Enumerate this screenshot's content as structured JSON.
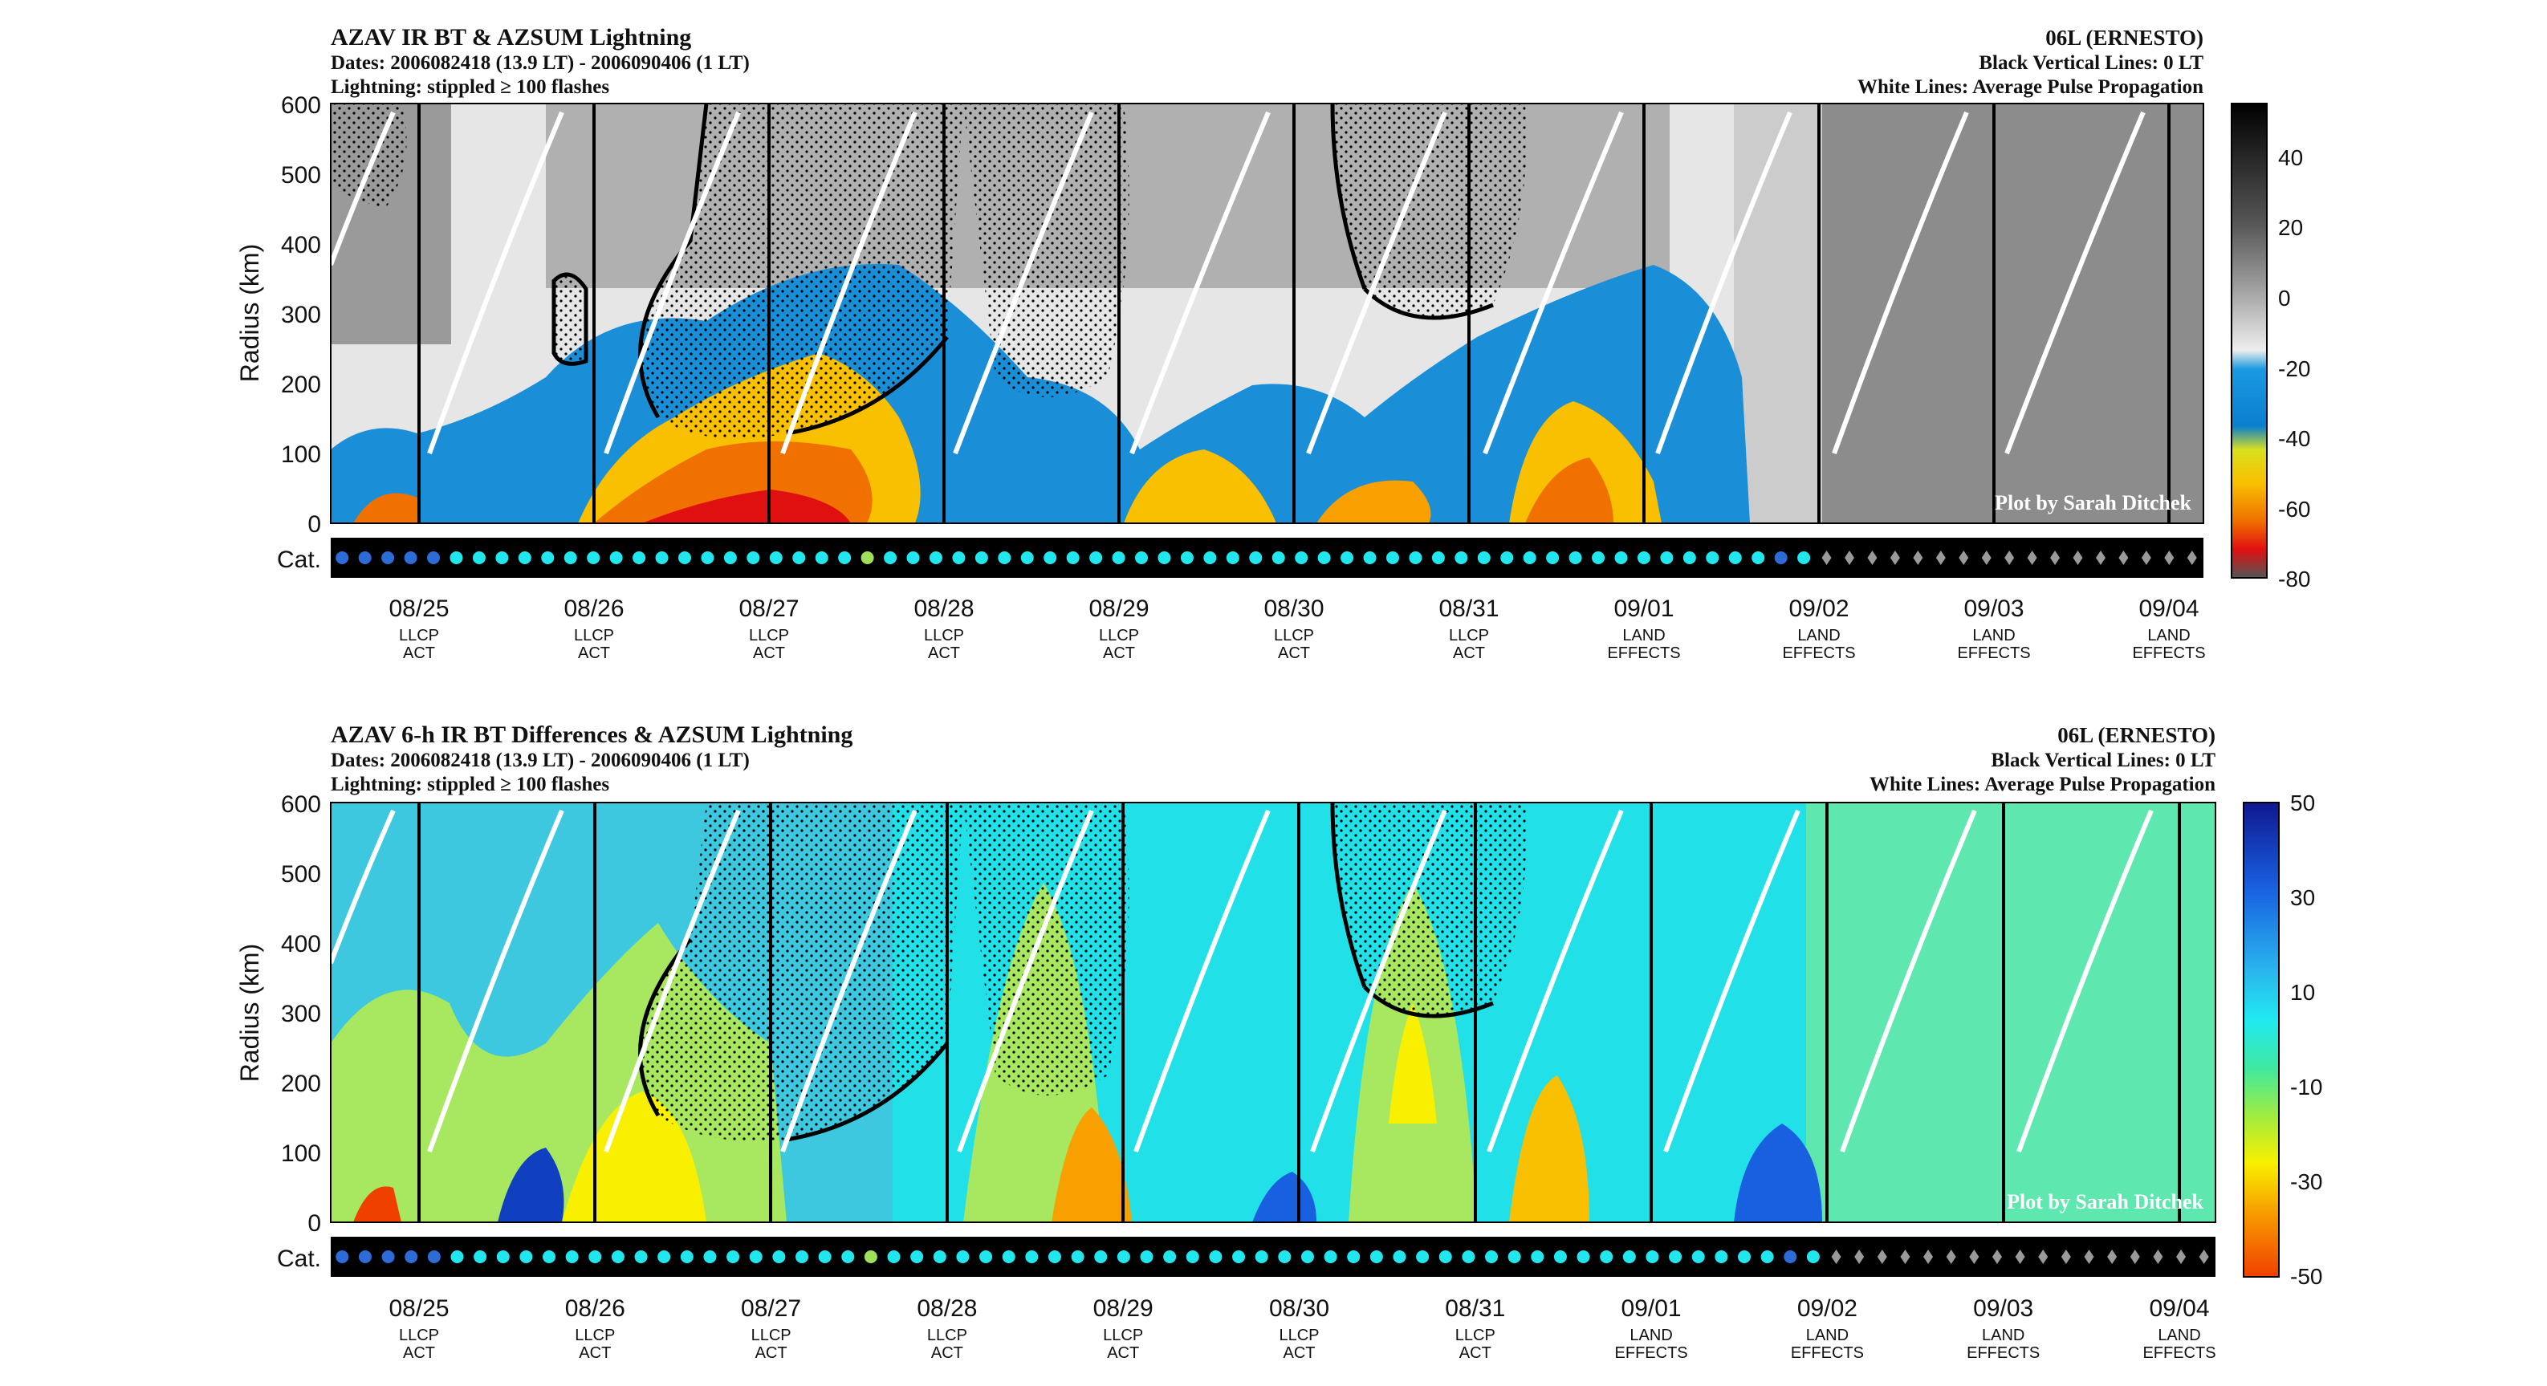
{
  "chart_data": [
    {
      "type": "heatmap",
      "title": "AZAV IR BT & AZSUM Lightning",
      "dates_line": "Dates: 2006082418 (13.9 LT) - 2006090406 (1 LT)",
      "lightning_line": "Lightning: stippled ≥ 100 flashes",
      "storm": "06L (ERNESTO)",
      "vertical_lines_note": "Black Vertical Lines: 0 LT",
      "white_lines_note": "White Lines: Average Pulse Propagation",
      "credit": "Plot by Sarah Ditchek",
      "ylabel": "Radius (km)",
      "ylim": [
        0,
        600
      ],
      "yticks": [
        "0",
        "100",
        "200",
        "300",
        "400",
        "500",
        "600"
      ],
      "cat_label": "Cat.",
      "colorbar_ticks": [
        "40",
        "20",
        "0",
        "-20",
        "-40",
        "-60",
        "-80"
      ],
      "colorbar_range": [
        -80,
        55
      ],
      "colormap": "gray-blue-yellow-red"
    },
    {
      "type": "heatmap",
      "title": "AZAV 6-h IR BT Differences & AZSUM Lightning",
      "dates_line": "Dates: 2006082418 (13.9 LT) - 2006090406 (1 LT)",
      "lightning_line": "Lightning: stippled ≥ 100 flashes",
      "storm": "06L (ERNESTO)",
      "vertical_lines_note": "Black Vertical Lines: 0 LT",
      "white_lines_note": "White Lines: Average Pulse Propagation",
      "credit": "Plot by Sarah Ditchek",
      "ylabel": "Radius (km)",
      "ylim": [
        0,
        600
      ],
      "yticks": [
        "0",
        "100",
        "200",
        "300",
        "400",
        "500",
        "600"
      ],
      "cat_label": "Cat.",
      "colorbar_ticks": [
        "50",
        "30",
        "10",
        "-10",
        "-30",
        "-50"
      ],
      "colorbar_range": [
        -50,
        50
      ],
      "colormap": "blue-cyan-green-yellow-orange"
    }
  ],
  "x_axis": {
    "dates": [
      "08/25",
      "08/26",
      "08/27",
      "08/28",
      "08/29",
      "08/30",
      "08/31",
      "09/01",
      "09/02",
      "09/03",
      "09/04"
    ],
    "stage_line1": [
      "LLCP",
      "LLCP",
      "LLCP",
      "LLCP",
      "LLCP",
      "LLCP",
      "LLCP",
      "LAND",
      "LAND",
      "LAND",
      "LAND"
    ],
    "stage_line2": [
      "ACT",
      "ACT",
      "ACT",
      "ACT",
      "ACT",
      "ACT",
      "ACT",
      "EFFECTS",
      "EFFECTS",
      "EFFECTS",
      "EFFECTS"
    ]
  },
  "category_strip": {
    "count": 82,
    "kinds": [
      "blue",
      "blue",
      "blue",
      "blue",
      "blue",
      "cyan",
      "cyan",
      "cyan",
      "cyan",
      "cyan",
      "cyan",
      "cyan",
      "cyan",
      "cyan",
      "cyan",
      "cyan",
      "cyan",
      "cyan",
      "cyan",
      "cyan",
      "cyan",
      "cyan",
      "cyan",
      "green",
      "cyan",
      "cyan",
      "cyan",
      "cyan",
      "cyan",
      "cyan",
      "cyan",
      "cyan",
      "cyan",
      "cyan",
      "cyan",
      "cyan",
      "cyan",
      "cyan",
      "cyan",
      "cyan",
      "cyan",
      "cyan",
      "cyan",
      "cyan",
      "cyan",
      "cyan",
      "cyan",
      "cyan",
      "cyan",
      "cyan",
      "cyan",
      "cyan",
      "cyan",
      "cyan",
      "cyan",
      "cyan",
      "cyan",
      "cyan",
      "cyan",
      "cyan",
      "cyan",
      "cyan",
      "cyan",
      "blue",
      "cyan",
      "diamond",
      "diamond",
      "diamond",
      "diamond",
      "diamond",
      "diamond",
      "diamond",
      "diamond",
      "diamond",
      "diamond",
      "diamond",
      "diamond",
      "diamond",
      "diamond",
      "diamond",
      "diamond",
      "diamond"
    ],
    "colors": {
      "blue": "#2d6bd6",
      "cyan": "#22e6ee",
      "green": "#9ee05a",
      "diamond": "#9a9a9a"
    }
  },
  "lt_zero_days": [
    0,
    1,
    2,
    3,
    4,
    5,
    6,
    7,
    8,
    9,
    10
  ]
}
